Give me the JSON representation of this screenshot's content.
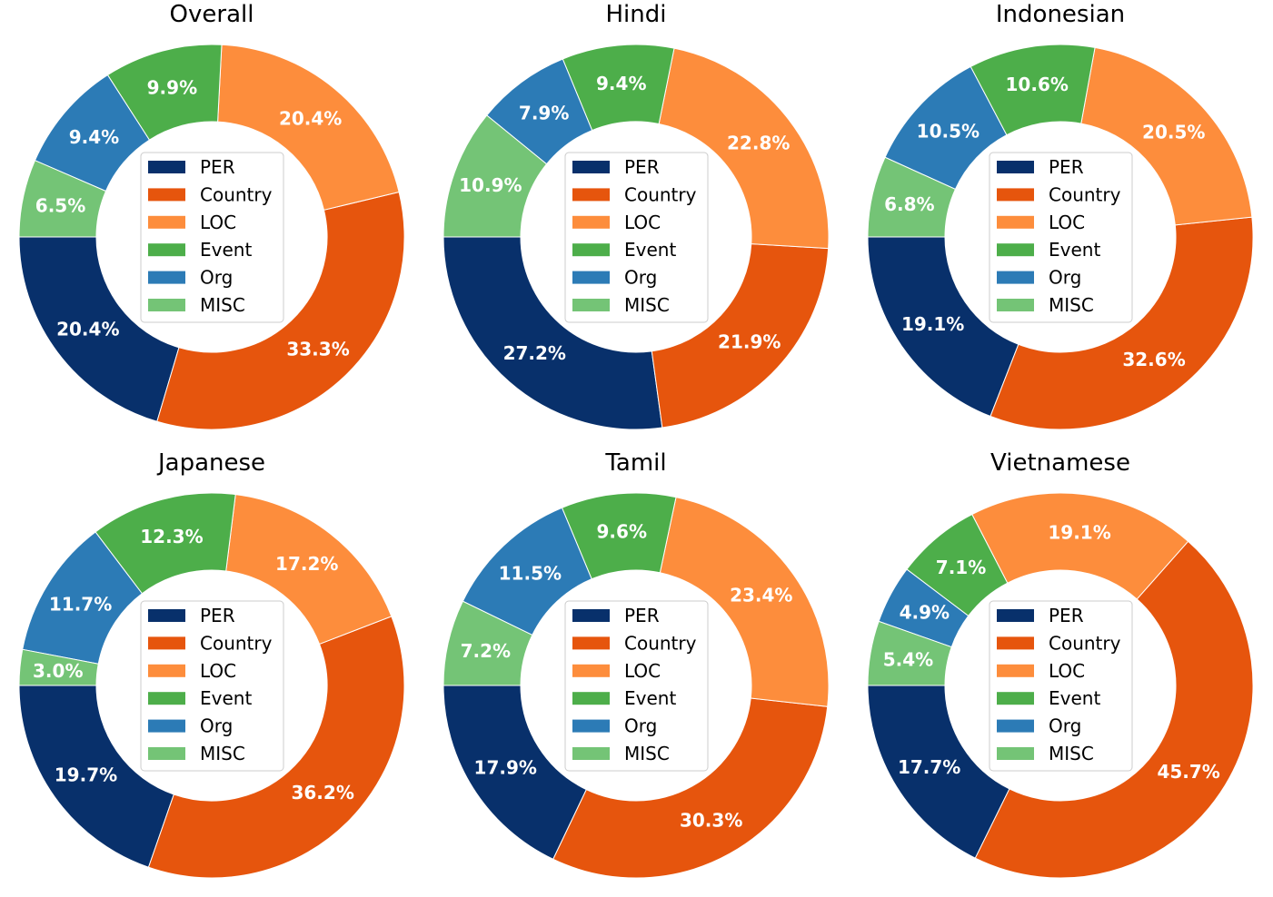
{
  "chart_data": {
    "type": "pie",
    "style": "donut",
    "legend_position": "center",
    "categories": [
      "PER",
      "Country",
      "LOC",
      "Event",
      "Org",
      "MISC"
    ],
    "colors": {
      "PER": "#08306b",
      "Country": "#e6550d",
      "LOC": "#fd8d3c",
      "Event": "#4dae4a",
      "Org": "#2c7bb6",
      "MISC": "#74c476"
    },
    "charts": [
      {
        "title": "Overall",
        "values": [
          20.4,
          33.3,
          20.4,
          9.9,
          9.4,
          6.5
        ],
        "labels": [
          "20.4%",
          "33.3%",
          "20.4%",
          "9.9%",
          "9.4%",
          "6.5%"
        ]
      },
      {
        "title": "Hindi",
        "values": [
          27.2,
          21.9,
          22.8,
          9.4,
          7.9,
          10.9
        ],
        "labels": [
          "27.2%",
          "21.9%",
          "22.8%",
          "9.4%",
          "7.9%",
          "10.9%"
        ]
      },
      {
        "title": "Indonesian",
        "values": [
          19.1,
          32.6,
          20.5,
          10.6,
          10.5,
          6.8
        ],
        "labels": [
          "19.1%",
          "32.6%",
          "20.5%",
          "10.6%",
          "10.5%",
          "6.8%"
        ]
      },
      {
        "title": "Japanese",
        "values": [
          19.7,
          36.2,
          17.2,
          12.3,
          11.7,
          3.0
        ],
        "labels": [
          "19.7%",
          "36.2%",
          "17.2%",
          "12.3%",
          "11.7%",
          "3.0%"
        ]
      },
      {
        "title": "Tamil",
        "values": [
          17.9,
          30.3,
          23.4,
          9.6,
          11.5,
          7.2
        ],
        "labels": [
          "17.9%",
          "30.3%",
          "23.4%",
          "9.6%",
          "11.5%",
          "7.2%"
        ]
      },
      {
        "title": "Vietnamese",
        "values": [
          17.7,
          45.7,
          19.1,
          7.1,
          4.9,
          5.4
        ],
        "labels": [
          "17.7%",
          "45.7%",
          "19.1%",
          "7.1%",
          "4.9%",
          "5.4%"
        ]
      }
    ]
  }
}
